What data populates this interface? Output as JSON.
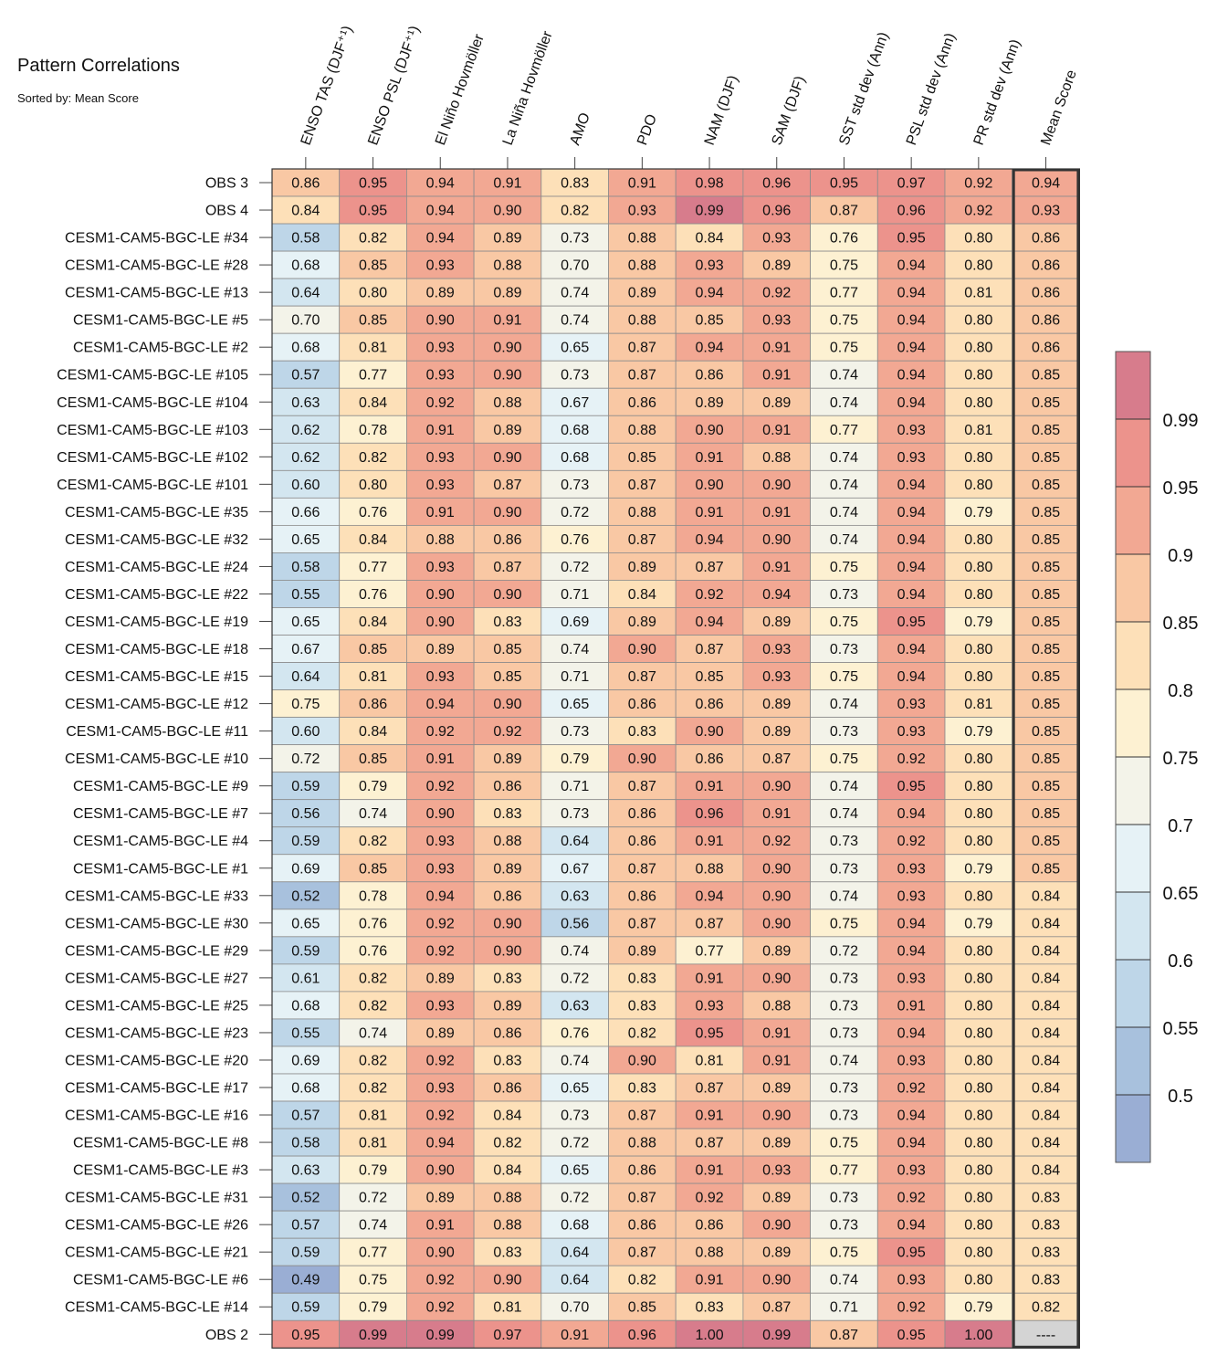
{
  "title": "Pattern Correlations",
  "subtitle": "Sorted by: Mean Score",
  "chart_data": {
    "type": "heatmap",
    "columns": [
      "ENSO TAS (DJF⁺¹)",
      "ENSO PSL (DJF⁺¹)",
      "El Niño Hovmöller",
      "La Niña Hovmöller",
      "AMO",
      "PDO",
      "NAM (DJF)",
      "SAM (DJF)",
      "SST std dev (Ann)",
      "PSL std dev (Ann)",
      "PR std dev (Ann)",
      "Mean Score"
    ],
    "rows": [
      {
        "label": "OBS 3",
        "values": [
          "0.86",
          "0.95",
          "0.94",
          "0.91",
          "0.83",
          "0.91",
          "0.98",
          "0.96",
          "0.95",
          "0.97",
          "0.92",
          "0.94"
        ]
      },
      {
        "label": "OBS 4",
        "values": [
          "0.84",
          "0.95",
          "0.94",
          "0.90",
          "0.82",
          "0.93",
          "0.99",
          "0.96",
          "0.87",
          "0.96",
          "0.92",
          "0.93"
        ]
      },
      {
        "label": "CESM1-CAM5-BGC-LE #34",
        "values": [
          "0.58",
          "0.82",
          "0.94",
          "0.89",
          "0.73",
          "0.88",
          "0.84",
          "0.93",
          "0.76",
          "0.95",
          "0.80",
          "0.86"
        ]
      },
      {
        "label": "CESM1-CAM5-BGC-LE #28",
        "values": [
          "0.68",
          "0.85",
          "0.93",
          "0.88",
          "0.70",
          "0.88",
          "0.93",
          "0.89",
          "0.75",
          "0.94",
          "0.80",
          "0.86"
        ]
      },
      {
        "label": "CESM1-CAM5-BGC-LE #13",
        "values": [
          "0.64",
          "0.80",
          "0.89",
          "0.89",
          "0.74",
          "0.89",
          "0.94",
          "0.92",
          "0.77",
          "0.94",
          "0.81",
          "0.86"
        ]
      },
      {
        "label": "CESM1-CAM5-BGC-LE #5",
        "values": [
          "0.70",
          "0.85",
          "0.90",
          "0.91",
          "0.74",
          "0.88",
          "0.85",
          "0.93",
          "0.75",
          "0.94",
          "0.80",
          "0.86"
        ]
      },
      {
        "label": "CESM1-CAM5-BGC-LE #2",
        "values": [
          "0.68",
          "0.81",
          "0.93",
          "0.90",
          "0.65",
          "0.87",
          "0.94",
          "0.91",
          "0.75",
          "0.94",
          "0.80",
          "0.86"
        ]
      },
      {
        "label": "CESM1-CAM5-BGC-LE #105",
        "values": [
          "0.57",
          "0.77",
          "0.93",
          "0.90",
          "0.73",
          "0.87",
          "0.86",
          "0.91",
          "0.74",
          "0.94",
          "0.80",
          "0.85"
        ]
      },
      {
        "label": "CESM1-CAM5-BGC-LE #104",
        "values": [
          "0.63",
          "0.84",
          "0.92",
          "0.88",
          "0.67",
          "0.86",
          "0.89",
          "0.89",
          "0.74",
          "0.94",
          "0.80",
          "0.85"
        ]
      },
      {
        "label": "CESM1-CAM5-BGC-LE #103",
        "values": [
          "0.62",
          "0.78",
          "0.91",
          "0.89",
          "0.68",
          "0.88",
          "0.90",
          "0.91",
          "0.77",
          "0.93",
          "0.81",
          "0.85"
        ]
      },
      {
        "label": "CESM1-CAM5-BGC-LE #102",
        "values": [
          "0.62",
          "0.82",
          "0.93",
          "0.90",
          "0.68",
          "0.85",
          "0.91",
          "0.88",
          "0.74",
          "0.93",
          "0.80",
          "0.85"
        ]
      },
      {
        "label": "CESM1-CAM5-BGC-LE #101",
        "values": [
          "0.60",
          "0.80",
          "0.93",
          "0.87",
          "0.73",
          "0.87",
          "0.90",
          "0.90",
          "0.74",
          "0.94",
          "0.80",
          "0.85"
        ]
      },
      {
        "label": "CESM1-CAM5-BGC-LE #35",
        "values": [
          "0.66",
          "0.76",
          "0.91",
          "0.90",
          "0.72",
          "0.88",
          "0.91",
          "0.91",
          "0.74",
          "0.94",
          "0.79",
          "0.85"
        ]
      },
      {
        "label": "CESM1-CAM5-BGC-LE #32",
        "values": [
          "0.65",
          "0.84",
          "0.88",
          "0.86",
          "0.76",
          "0.87",
          "0.94",
          "0.90",
          "0.74",
          "0.94",
          "0.80",
          "0.85"
        ]
      },
      {
        "label": "CESM1-CAM5-BGC-LE #24",
        "values": [
          "0.58",
          "0.77",
          "0.93",
          "0.87",
          "0.72",
          "0.89",
          "0.87",
          "0.91",
          "0.75",
          "0.94",
          "0.80",
          "0.85"
        ]
      },
      {
        "label": "CESM1-CAM5-BGC-LE #22",
        "values": [
          "0.55",
          "0.76",
          "0.90",
          "0.90",
          "0.71",
          "0.84",
          "0.92",
          "0.94",
          "0.73",
          "0.94",
          "0.80",
          "0.85"
        ]
      },
      {
        "label": "CESM1-CAM5-BGC-LE #19",
        "values": [
          "0.65",
          "0.84",
          "0.90",
          "0.83",
          "0.69",
          "0.89",
          "0.94",
          "0.89",
          "0.75",
          "0.95",
          "0.79",
          "0.85"
        ]
      },
      {
        "label": "CESM1-CAM5-BGC-LE #18",
        "values": [
          "0.67",
          "0.85",
          "0.89",
          "0.85",
          "0.74",
          "0.90",
          "0.87",
          "0.93",
          "0.73",
          "0.94",
          "0.80",
          "0.85"
        ]
      },
      {
        "label": "CESM1-CAM5-BGC-LE #15",
        "values": [
          "0.64",
          "0.81",
          "0.93",
          "0.85",
          "0.71",
          "0.87",
          "0.85",
          "0.93",
          "0.75",
          "0.94",
          "0.80",
          "0.85"
        ]
      },
      {
        "label": "CESM1-CAM5-BGC-LE #12",
        "values": [
          "0.75",
          "0.86",
          "0.94",
          "0.90",
          "0.65",
          "0.86",
          "0.86",
          "0.89",
          "0.74",
          "0.93",
          "0.81",
          "0.85"
        ]
      },
      {
        "label": "CESM1-CAM5-BGC-LE #11",
        "values": [
          "0.60",
          "0.84",
          "0.92",
          "0.92",
          "0.73",
          "0.83",
          "0.90",
          "0.89",
          "0.73",
          "0.93",
          "0.79",
          "0.85"
        ]
      },
      {
        "label": "CESM1-CAM5-BGC-LE #10",
        "values": [
          "0.72",
          "0.85",
          "0.91",
          "0.89",
          "0.79",
          "0.90",
          "0.86",
          "0.87",
          "0.75",
          "0.92",
          "0.80",
          "0.85"
        ]
      },
      {
        "label": "CESM1-CAM5-BGC-LE #9",
        "values": [
          "0.59",
          "0.79",
          "0.92",
          "0.86",
          "0.71",
          "0.87",
          "0.91",
          "0.90",
          "0.74",
          "0.95",
          "0.80",
          "0.85"
        ]
      },
      {
        "label": "CESM1-CAM5-BGC-LE #7",
        "values": [
          "0.56",
          "0.74",
          "0.90",
          "0.83",
          "0.73",
          "0.86",
          "0.96",
          "0.91",
          "0.74",
          "0.94",
          "0.80",
          "0.85"
        ]
      },
      {
        "label": "CESM1-CAM5-BGC-LE #4",
        "values": [
          "0.59",
          "0.82",
          "0.93",
          "0.88",
          "0.64",
          "0.86",
          "0.91",
          "0.92",
          "0.73",
          "0.92",
          "0.80",
          "0.85"
        ]
      },
      {
        "label": "CESM1-CAM5-BGC-LE #1",
        "values": [
          "0.69",
          "0.85",
          "0.93",
          "0.89",
          "0.67",
          "0.87",
          "0.88",
          "0.90",
          "0.73",
          "0.93",
          "0.79",
          "0.85"
        ]
      },
      {
        "label": "CESM1-CAM5-BGC-LE #33",
        "values": [
          "0.52",
          "0.78",
          "0.94",
          "0.86",
          "0.63",
          "0.86",
          "0.94",
          "0.90",
          "0.74",
          "0.93",
          "0.80",
          "0.84"
        ]
      },
      {
        "label": "CESM1-CAM5-BGC-LE #30",
        "values": [
          "0.65",
          "0.76",
          "0.92",
          "0.90",
          "0.56",
          "0.87",
          "0.87",
          "0.90",
          "0.75",
          "0.94",
          "0.79",
          "0.84"
        ]
      },
      {
        "label": "CESM1-CAM5-BGC-LE #29",
        "values": [
          "0.59",
          "0.76",
          "0.92",
          "0.90",
          "0.74",
          "0.89",
          "0.77",
          "0.89",
          "0.72",
          "0.94",
          "0.80",
          "0.84"
        ]
      },
      {
        "label": "CESM1-CAM5-BGC-LE #27",
        "values": [
          "0.61",
          "0.82",
          "0.89",
          "0.83",
          "0.72",
          "0.83",
          "0.91",
          "0.90",
          "0.73",
          "0.93",
          "0.80",
          "0.84"
        ]
      },
      {
        "label": "CESM1-CAM5-BGC-LE #25",
        "values": [
          "0.68",
          "0.82",
          "0.93",
          "0.89",
          "0.63",
          "0.83",
          "0.93",
          "0.88",
          "0.73",
          "0.91",
          "0.80",
          "0.84"
        ]
      },
      {
        "label": "CESM1-CAM5-BGC-LE #23",
        "values": [
          "0.55",
          "0.74",
          "0.89",
          "0.86",
          "0.76",
          "0.82",
          "0.95",
          "0.91",
          "0.73",
          "0.94",
          "0.80",
          "0.84"
        ]
      },
      {
        "label": "CESM1-CAM5-BGC-LE #20",
        "values": [
          "0.69",
          "0.82",
          "0.92",
          "0.83",
          "0.74",
          "0.90",
          "0.81",
          "0.91",
          "0.74",
          "0.93",
          "0.80",
          "0.84"
        ]
      },
      {
        "label": "CESM1-CAM5-BGC-LE #17",
        "values": [
          "0.68",
          "0.82",
          "0.93",
          "0.86",
          "0.65",
          "0.83",
          "0.87",
          "0.89",
          "0.73",
          "0.92",
          "0.80",
          "0.84"
        ]
      },
      {
        "label": "CESM1-CAM5-BGC-LE #16",
        "values": [
          "0.57",
          "0.81",
          "0.92",
          "0.84",
          "0.73",
          "0.87",
          "0.91",
          "0.90",
          "0.73",
          "0.94",
          "0.80",
          "0.84"
        ]
      },
      {
        "label": "CESM1-CAM5-BGC-LE #8",
        "values": [
          "0.58",
          "0.81",
          "0.94",
          "0.82",
          "0.72",
          "0.88",
          "0.87",
          "0.89",
          "0.75",
          "0.94",
          "0.80",
          "0.84"
        ]
      },
      {
        "label": "CESM1-CAM5-BGC-LE #3",
        "values": [
          "0.63",
          "0.79",
          "0.90",
          "0.84",
          "0.65",
          "0.86",
          "0.91",
          "0.93",
          "0.77",
          "0.93",
          "0.80",
          "0.84"
        ]
      },
      {
        "label": "CESM1-CAM5-BGC-LE #31",
        "values": [
          "0.52",
          "0.72",
          "0.89",
          "0.88",
          "0.72",
          "0.87",
          "0.92",
          "0.89",
          "0.73",
          "0.92",
          "0.80",
          "0.83"
        ]
      },
      {
        "label": "CESM1-CAM5-BGC-LE #26",
        "values": [
          "0.57",
          "0.74",
          "0.91",
          "0.88",
          "0.68",
          "0.86",
          "0.86",
          "0.90",
          "0.73",
          "0.94",
          "0.80",
          "0.83"
        ]
      },
      {
        "label": "CESM1-CAM5-BGC-LE #21",
        "values": [
          "0.59",
          "0.77",
          "0.90",
          "0.83",
          "0.64",
          "0.87",
          "0.88",
          "0.89",
          "0.75",
          "0.95",
          "0.80",
          "0.83"
        ]
      },
      {
        "label": "CESM1-CAM5-BGC-LE #6",
        "values": [
          "0.49",
          "0.75",
          "0.92",
          "0.90",
          "0.64",
          "0.82",
          "0.91",
          "0.90",
          "0.74",
          "0.93",
          "0.80",
          "0.83"
        ]
      },
      {
        "label": "CESM1-CAM5-BGC-LE #14",
        "values": [
          "0.59",
          "0.79",
          "0.92",
          "0.81",
          "0.70",
          "0.85",
          "0.83",
          "0.87",
          "0.71",
          "0.92",
          "0.79",
          "0.82"
        ]
      },
      {
        "label": "OBS 2",
        "values": [
          "0.95",
          "0.99",
          "0.99",
          "0.97",
          "0.91",
          "0.96",
          "1.00",
          "0.99",
          "0.87",
          "0.95",
          "1.00",
          "----"
        ]
      }
    ],
    "colorbar": {
      "ticks": [
        "0.5",
        "0.55",
        "0.6",
        "0.65",
        "0.7",
        "0.75",
        "0.8",
        "0.85",
        "0.9",
        "0.95",
        "0.99"
      ],
      "colors": [
        "#9aaed4",
        "#a8c1dd",
        "#bed6e8",
        "#d3e6f0",
        "#e6f2f6",
        "#f3f3e9",
        "#fdf1d2",
        "#fde0b8",
        "#f9c8a4",
        "#f2a893",
        "#ec938c",
        "#d77c8c"
      ],
      "missing_color": "#d4d4d4"
    }
  }
}
